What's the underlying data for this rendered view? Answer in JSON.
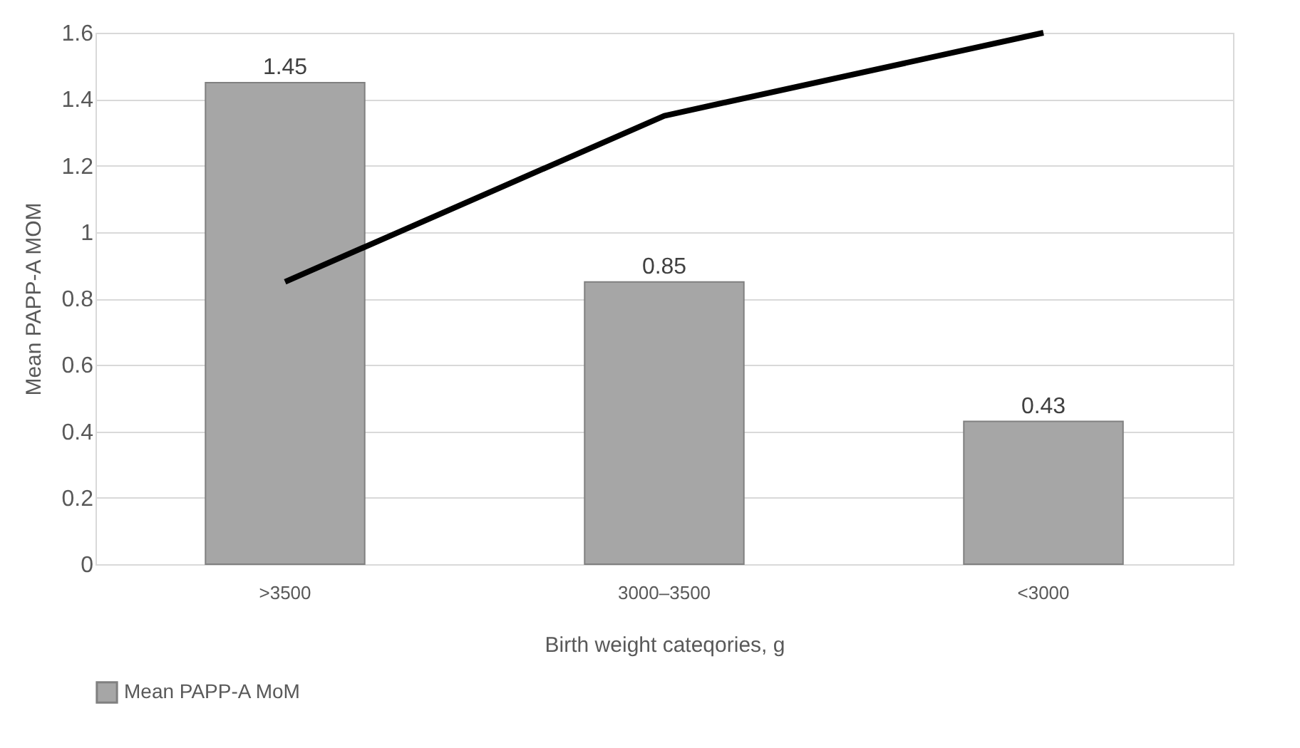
{
  "chart_data": {
    "type": "bar",
    "xlabel": "Birth weight cateqories, g",
    "ylabel": "Mean PAPP-A MOM",
    "categories": [
      ">3500",
      "3000–3500",
      "<3000"
    ],
    "series": [
      {
        "name": "Mean PAPP-A MoM",
        "color": "#a6a6a6",
        "values": [
          1.45,
          0.85,
          0.43
        ],
        "value_labels": [
          "1.45",
          "0.85",
          "0.43"
        ]
      },
      {
        "type": "line",
        "color": "#000000",
        "values": [
          0.85,
          1.35,
          1.6
        ]
      }
    ],
    "ylim": [
      0,
      1.6
    ],
    "yticks": [
      0,
      0.2,
      0.4,
      0.6,
      0.8,
      1,
      1.2,
      1.4,
      1.6
    ],
    "grid": "y",
    "legend": "bottom",
    "marker": "none",
    "line_style": "solid"
  }
}
